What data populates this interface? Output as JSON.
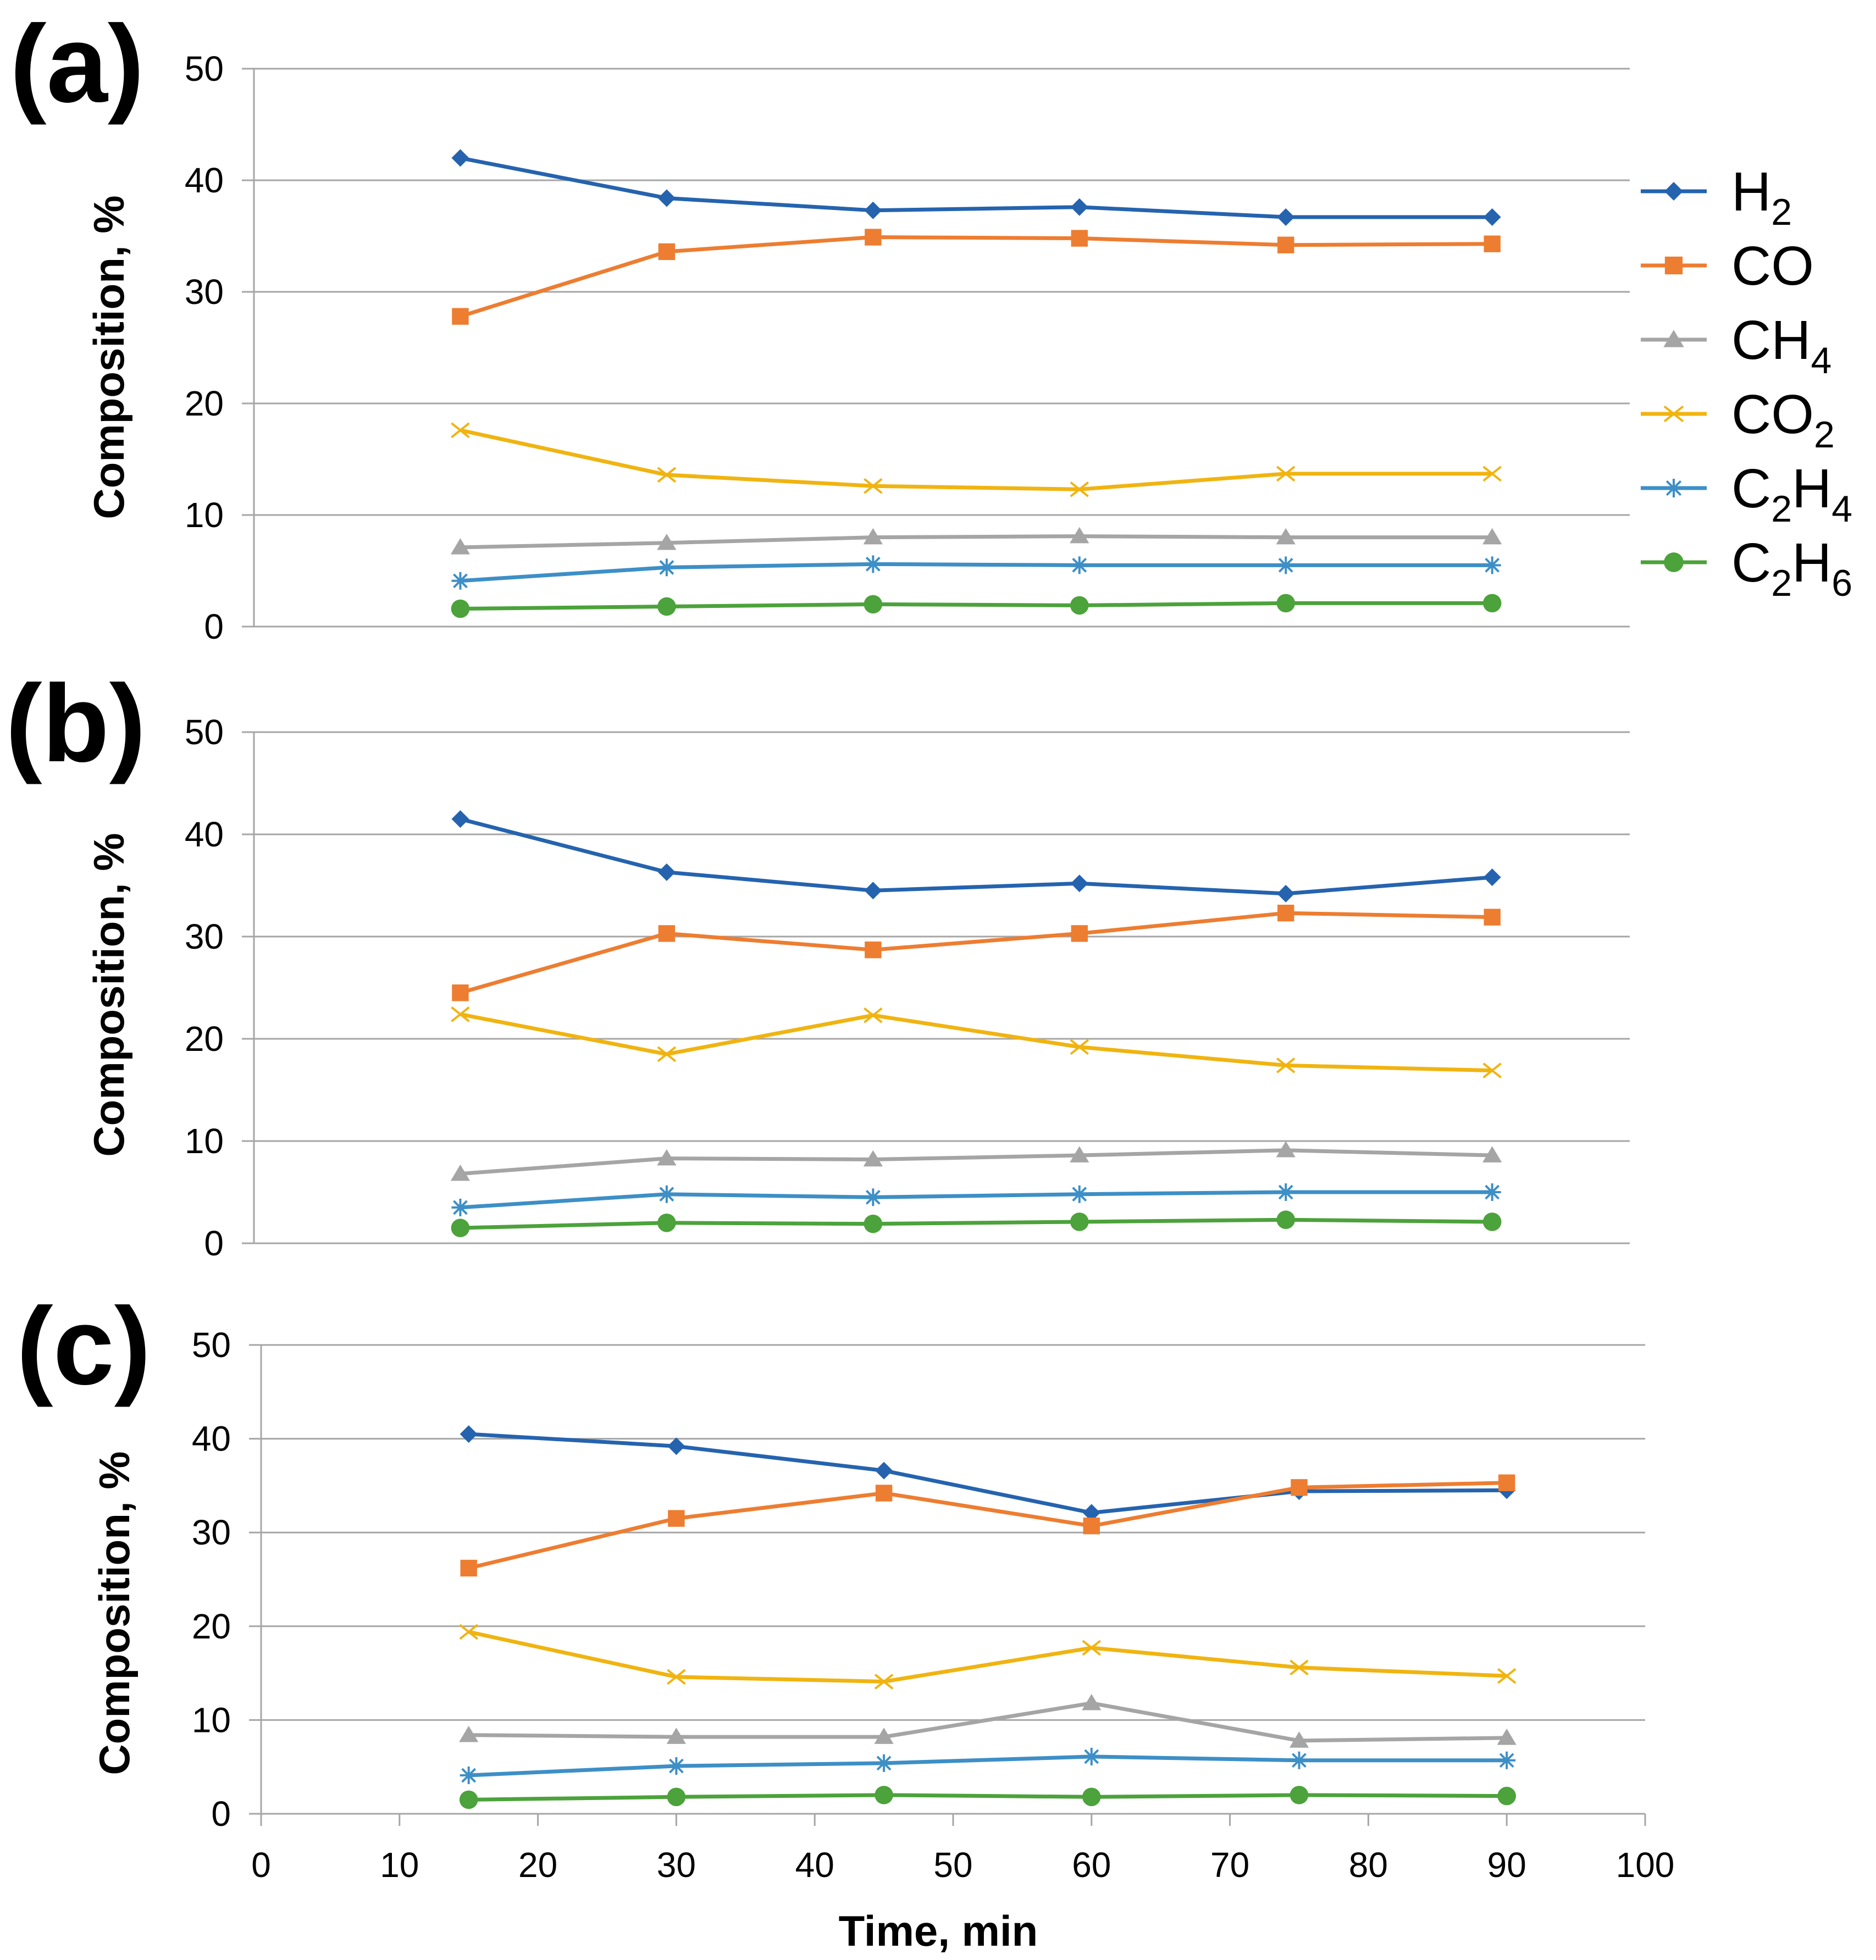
{
  "chart_data": [
    {
      "type": "line",
      "panel_label": "(a)",
      "ylabel": "Composition, %",
      "ylim": [
        0,
        50
      ],
      "yticks": [
        "0",
        "10",
        "20",
        "30",
        "40",
        "50"
      ],
      "grid": true,
      "series": [
        {
          "name": "H2",
          "x": [
            15,
            30,
            45,
            60,
            75,
            90
          ],
          "values": [
            42.0,
            38.4,
            37.3,
            37.6,
            36.7,
            36.7
          ]
        },
        {
          "name": "CO",
          "x": [
            15,
            30,
            45,
            60,
            75,
            90
          ],
          "values": [
            27.8,
            33.6,
            34.9,
            34.8,
            34.2,
            34.3
          ]
        },
        {
          "name": "CH4",
          "x": [
            15,
            30,
            45,
            60,
            75,
            90
          ],
          "values": [
            7.1,
            7.5,
            8.0,
            8.1,
            8.0,
            8.0
          ]
        },
        {
          "name": "CO2",
          "x": [
            15,
            30,
            45,
            60,
            75,
            90
          ],
          "values": [
            17.6,
            13.6,
            12.6,
            12.3,
            13.7,
            13.7
          ]
        },
        {
          "name": "C2H4",
          "x": [
            15,
            30,
            45,
            60,
            75,
            90
          ],
          "values": [
            4.1,
            5.3,
            5.6,
            5.5,
            5.5,
            5.5
          ]
        },
        {
          "name": "C2H6",
          "x": [
            15,
            30,
            45,
            60,
            75,
            90
          ],
          "values": [
            1.6,
            1.8,
            2.0,
            1.9,
            2.1,
            2.1
          ]
        }
      ]
    },
    {
      "type": "line",
      "panel_label": "(b)",
      "ylabel": "Composition, %",
      "ylim": [
        0,
        50
      ],
      "yticks": [
        "0",
        "10",
        "20",
        "30",
        "40",
        "50"
      ],
      "grid": true,
      "series": [
        {
          "name": "H2",
          "x": [
            15,
            30,
            45,
            60,
            75,
            90
          ],
          "values": [
            41.5,
            36.3,
            34.5,
            35.2,
            34.2,
            35.8
          ]
        },
        {
          "name": "CO",
          "x": [
            15,
            30,
            45,
            60,
            75,
            90
          ],
          "values": [
            24.5,
            30.3,
            28.7,
            30.3,
            32.3,
            31.9
          ]
        },
        {
          "name": "CH4",
          "x": [
            15,
            30,
            45,
            60,
            75,
            90
          ],
          "values": [
            6.8,
            8.3,
            8.2,
            8.6,
            9.1,
            8.6
          ]
        },
        {
          "name": "CO2",
          "x": [
            15,
            30,
            45,
            60,
            75,
            90
          ],
          "values": [
            22.4,
            18.5,
            22.3,
            19.2,
            17.4,
            16.9
          ]
        },
        {
          "name": "C2H4",
          "x": [
            15,
            30,
            45,
            60,
            75,
            90
          ],
          "values": [
            3.5,
            4.8,
            4.5,
            4.8,
            5.0,
            5.0
          ]
        },
        {
          "name": "C2H6",
          "x": [
            15,
            30,
            45,
            60,
            75,
            90
          ],
          "values": [
            1.5,
            2.0,
            1.9,
            2.1,
            2.3,
            2.1
          ]
        }
      ]
    },
    {
      "type": "line",
      "panel_label": "(c)",
      "ylabel": "Composition, %",
      "xlabel": "Time, min",
      "ylim": [
        0,
        50
      ],
      "xlim": [
        0,
        100
      ],
      "yticks": [
        "0",
        "10",
        "20",
        "30",
        "40",
        "50"
      ],
      "xticks": [
        "0",
        "10",
        "20",
        "30",
        "40",
        "50",
        "60",
        "70",
        "80",
        "90",
        "100"
      ],
      "grid": true,
      "series": [
        {
          "name": "H2",
          "x": [
            15,
            30,
            45,
            60,
            75,
            90
          ],
          "values": [
            40.5,
            39.2,
            36.6,
            32.1,
            34.4,
            34.5
          ]
        },
        {
          "name": "CO",
          "x": [
            15,
            30,
            45,
            60,
            75,
            90
          ],
          "values": [
            26.2,
            31.5,
            34.2,
            30.7,
            34.8,
            35.3
          ]
        },
        {
          "name": "CH4",
          "x": [
            15,
            30,
            45,
            60,
            75,
            90
          ],
          "values": [
            8.4,
            8.2,
            8.2,
            11.8,
            7.8,
            8.1
          ]
        },
        {
          "name": "CO2",
          "x": [
            15,
            30,
            45,
            60,
            75,
            90
          ],
          "values": [
            19.4,
            14.6,
            14.1,
            17.7,
            15.6,
            14.7
          ]
        },
        {
          "name": "C2H4",
          "x": [
            15,
            30,
            45,
            60,
            75,
            90
          ],
          "values": [
            4.1,
            5.1,
            5.4,
            6.1,
            5.7,
            5.7
          ]
        },
        {
          "name": "C2H6",
          "x": [
            15,
            30,
            45,
            60,
            75,
            90
          ],
          "values": [
            1.5,
            1.8,
            2.0,
            1.8,
            2.0,
            1.9
          ]
        }
      ]
    }
  ],
  "legend": {
    "placement": "right of panel (a)",
    "items": [
      {
        "name": "H2",
        "base": "H",
        "sub": "2",
        "marker": "diamond",
        "color": "#2563AE"
      },
      {
        "name": "CO",
        "base": "CO",
        "sub": "",
        "marker": "square",
        "color": "#ED7D31"
      },
      {
        "name": "CH4",
        "base": "CH",
        "sub": "4",
        "marker": "triangle",
        "color": "#A5A5A5"
      },
      {
        "name": "CO2",
        "base": "CO",
        "sub": "2",
        "marker": "x",
        "color": "#F0B411"
      },
      {
        "name": "C2H4",
        "base": "C",
        "sub": "2",
        "base2": "H",
        "sub2": "4",
        "marker": "star",
        "color": "#3D8FC6"
      },
      {
        "name": "C2H6",
        "base": "C",
        "sub": "2",
        "base2": "H",
        "sub2": "6",
        "marker": "circle",
        "color": "#4CA23B"
      }
    ]
  },
  "colors": {
    "grid": "#A6A6A6",
    "H2": "#2563AE",
    "CO": "#ED7D31",
    "CH4": "#A5A5A5",
    "CO2": "#F0B411",
    "C2H4": "#3D8FC6",
    "C2H6": "#4CA23B"
  }
}
